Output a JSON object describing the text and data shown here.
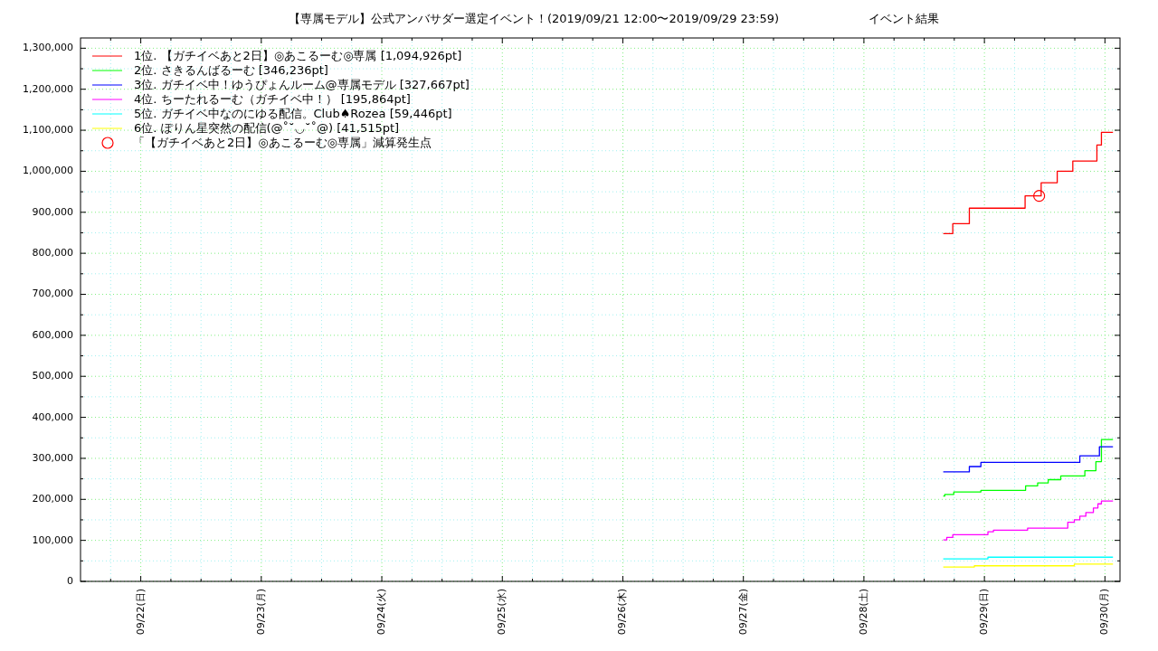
{
  "chart_data": {
    "type": "step",
    "title": "【専属モデル】公式アンバサダー選定イベント！(2019/09/21 12:00〜2019/09/29 23:59)",
    "subtitle": "イベント結果",
    "xlim": [
      "2019-09-21T12:00",
      "2019-09-30T03:00"
    ],
    "xticks": [
      {
        "value": "2019-09-21T18:00",
        "label": null
      },
      {
        "value": "2019-09-22T00:00",
        "label": "09/22(日)"
      },
      {
        "value": "2019-09-22T06:00",
        "label": null
      },
      {
        "value": "2019-09-22T12:00",
        "label": null
      },
      {
        "value": "2019-09-22T18:00",
        "label": null
      },
      {
        "value": "2019-09-23T00:00",
        "label": "09/23(月)"
      },
      {
        "value": "2019-09-23T06:00",
        "label": null
      },
      {
        "value": "2019-09-23T12:00",
        "label": null
      },
      {
        "value": "2019-09-23T18:00",
        "label": null
      },
      {
        "value": "2019-09-24T00:00",
        "label": "09/24(火)"
      },
      {
        "value": "2019-09-24T06:00",
        "label": null
      },
      {
        "value": "2019-09-24T12:00",
        "label": null
      },
      {
        "value": "2019-09-24T18:00",
        "label": null
      },
      {
        "value": "2019-09-25T00:00",
        "label": "09/25(水)"
      },
      {
        "value": "2019-09-25T06:00",
        "label": null
      },
      {
        "value": "2019-09-25T12:00",
        "label": null
      },
      {
        "value": "2019-09-25T18:00",
        "label": null
      },
      {
        "value": "2019-09-26T00:00",
        "label": "09/26(木)"
      },
      {
        "value": "2019-09-26T06:00",
        "label": null
      },
      {
        "value": "2019-09-26T12:00",
        "label": null
      },
      {
        "value": "2019-09-26T18:00",
        "label": null
      },
      {
        "value": "2019-09-27T00:00",
        "label": "09/27(金)"
      },
      {
        "value": "2019-09-27T06:00",
        "label": null
      },
      {
        "value": "2019-09-27T12:00",
        "label": null
      },
      {
        "value": "2019-09-27T18:00",
        "label": null
      },
      {
        "value": "2019-09-28T00:00",
        "label": "09/28(土)"
      },
      {
        "value": "2019-09-28T06:00",
        "label": null
      },
      {
        "value": "2019-09-28T12:00",
        "label": null
      },
      {
        "value": "2019-09-28T18:00",
        "label": null
      },
      {
        "value": "2019-09-29T00:00",
        "label": "09/29(日)"
      },
      {
        "value": "2019-09-29T06:00",
        "label": null
      },
      {
        "value": "2019-09-29T12:00",
        "label": null
      },
      {
        "value": "2019-09-29T18:00",
        "label": null
      },
      {
        "value": "2019-09-30T00:00",
        "label": "09/30(月)"
      }
    ],
    "ylim": [
      0,
      1325000
    ],
    "yticks": [
      {
        "value": 0,
        "label": "0"
      },
      {
        "value": 50000,
        "label": null
      },
      {
        "value": 100000,
        "label": "100,000"
      },
      {
        "value": 150000,
        "label": null
      },
      {
        "value": 200000,
        "label": "200,000"
      },
      {
        "value": 250000,
        "label": null
      },
      {
        "value": 300000,
        "label": "300,000"
      },
      {
        "value": 350000,
        "label": null
      },
      {
        "value": 400000,
        "label": "400,000"
      },
      {
        "value": 450000,
        "label": null
      },
      {
        "value": 500000,
        "label": "500,000"
      },
      {
        "value": 550000,
        "label": null
      },
      {
        "value": 600000,
        "label": "600,000"
      },
      {
        "value": 650000,
        "label": null
      },
      {
        "value": 700000,
        "label": "700,000"
      },
      {
        "value": 750000,
        "label": null
      },
      {
        "value": 800000,
        "label": "800,000"
      },
      {
        "value": 850000,
        "label": null
      },
      {
        "value": 900000,
        "label": "900,000"
      },
      {
        "value": 950000,
        "label": null
      },
      {
        "value": 1000000,
        "label": "1,000,000"
      },
      {
        "value": 1050000,
        "label": null
      },
      {
        "value": 1100000,
        "label": "1,100,000"
      },
      {
        "value": 1150000,
        "label": null
      },
      {
        "value": 1200000,
        "label": "1,200,000"
      },
      {
        "value": 1250000,
        "label": null
      },
      {
        "value": 1300000,
        "label": "1,300,000"
      }
    ],
    "grid": true,
    "legend": "top left",
    "series": [
      {
        "name": "1位. 【ガチイベあと2日】◎あこるーむ◎専属 [1,094,926pt]",
        "color": "#ff0000",
        "x": [
          "2019-09-28T15:48",
          "2019-09-28T17:42",
          "2019-09-28T21:00",
          "2019-09-29T08:06",
          "2019-09-29T11:18",
          "2019-09-29T14:30",
          "2019-09-29T17:36",
          "2019-09-29T22:24",
          "2019-09-29T23:18",
          "2019-09-30T01:36"
        ],
        "values": [
          848000,
          872000,
          910000,
          940000,
          972000,
          1000000,
          1025000,
          1064000,
          1095000,
          1095000
        ]
      },
      {
        "name": "2位. さきるんばるーむ [346,236pt]",
        "color": "#00ff00",
        "x": [
          "2019-09-28T15:48",
          "2019-09-28T16:06",
          "2019-09-28T17:54",
          "2019-09-28T23:18",
          "2019-09-29T08:12",
          "2019-09-29T10:36",
          "2019-09-29T12:42",
          "2019-09-29T15:12",
          "2019-09-29T20:00",
          "2019-09-29T22:12",
          "2019-09-29T23:18",
          "2019-09-30T01:36"
        ],
        "values": [
          208000,
          212000,
          218000,
          222000,
          233000,
          240000,
          248000,
          257000,
          270000,
          292000,
          346000,
          346000
        ]
      },
      {
        "name": "3位. ガチイベ中！ゆうぴょんルーム@専属モデル [327,667pt]",
        "color": "#0000ff",
        "x": [
          "2019-09-28T15:48",
          "2019-09-28T21:00",
          "2019-09-28T23:18",
          "2019-09-29T19:00",
          "2019-09-29T22:54",
          "2019-09-30T01:36"
        ],
        "values": [
          267000,
          280000,
          290000,
          306000,
          328000,
          328000
        ]
      },
      {
        "name": "4位. ちーたれるーむ（ガチイベ中！） [195,864pt]",
        "color": "#ff00ff",
        "x": [
          "2019-09-28T15:48",
          "2019-09-28T16:30",
          "2019-09-28T17:42",
          "2019-09-29T00:42",
          "2019-09-29T01:48",
          "2019-09-29T08:36",
          "2019-09-29T16:36",
          "2019-09-29T17:54",
          "2019-09-29T19:00",
          "2019-09-29T20:12",
          "2019-09-29T21:42",
          "2019-09-29T22:36",
          "2019-09-29T23:18",
          "2019-09-30T01:36"
        ],
        "values": [
          101000,
          107000,
          114000,
          121000,
          125000,
          130000,
          144000,
          150000,
          159000,
          168000,
          179000,
          189000,
          196000,
          196000
        ]
      },
      {
        "name": "5位. ガチイベ中なのにゆる配信。Club♠Rozea [59,446pt]",
        "color": "#00ffff",
        "x": [
          "2019-09-28T15:48",
          "2019-09-29T00:42",
          "2019-09-30T01:36"
        ],
        "values": [
          55000,
          59000,
          59000
        ]
      },
      {
        "name": "6位. ぽりん星突然の配信(@˚˘◡˘˚@) [41,515pt]",
        "color": "#ffff00",
        "x": [
          "2019-09-28T15:48",
          "2019-09-28T22:00",
          "2019-09-29T17:54",
          "2019-09-30T01:36"
        ],
        "values": [
          35000,
          38000,
          42000,
          42000
        ]
      },
      {
        "name": "「【ガチイベあと2日】◎あこるーむ◎専属」減算発生点",
        "type": "scatter",
        "marker": "circle",
        "color": "#ff0000",
        "x": [
          "2019-09-29T10:54"
        ],
        "values": [
          940000
        ]
      }
    ]
  }
}
